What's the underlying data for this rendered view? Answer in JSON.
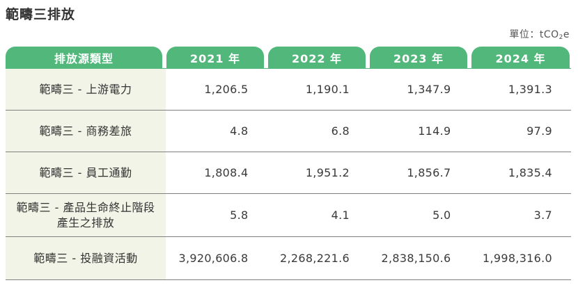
{
  "title": "範疇三排放",
  "unit": {
    "prefix": "單位：tCO",
    "subscript": "2",
    "suffix": "e"
  },
  "table": {
    "headers": [
      "排放源類型",
      "2021 年",
      "2022 年",
      "2023 年",
      "2024 年"
    ],
    "rows": [
      {
        "label": "範疇三 - 上游電力",
        "values": [
          "1,206.5",
          "1,190.1",
          "1,347.9",
          "1,391.3"
        ]
      },
      {
        "label": "範疇三 - 商務差旅",
        "values": [
          "4.8",
          "6.8",
          "114.9",
          "97.9"
        ]
      },
      {
        "label": "範疇三 - 員工通勤",
        "values": [
          "1,808.4",
          "1,951.2",
          "1,856.7",
          "1,835.4"
        ]
      },
      {
        "label": "範疇三 - 產品生命終止階段產生之排放",
        "values": [
          "5.8",
          "4.1",
          "5.0",
          "3.7"
        ]
      },
      {
        "label": "範疇三 - 投融資活動",
        "values": [
          "3,920,606.8",
          "2,268,221.6",
          "2,838,150.6",
          "1,998,316.0"
        ]
      }
    ]
  },
  "colors": {
    "header_green": "#52b77a",
    "label_bg": "#f1f4e6",
    "row_divider": "#7f7f7f"
  }
}
